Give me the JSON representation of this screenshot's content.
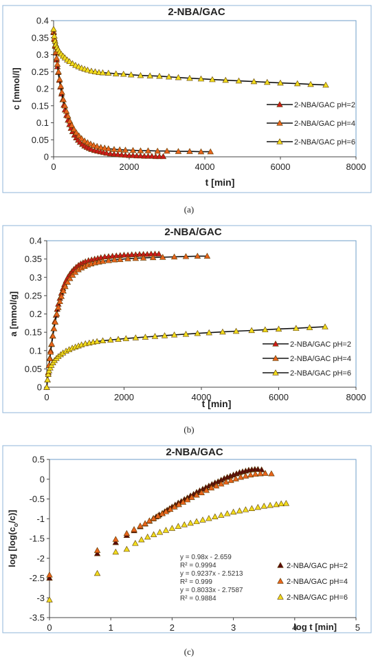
{
  "figure": {
    "captions": [
      "(a)",
      "(b)",
      "(c)"
    ]
  },
  "chart_data": [
    {
      "type": "scatter",
      "title": "2-NBA/GAC",
      "xlabel": "t [min]",
      "ylabel": "c [mmol/l]",
      "xlim": [
        0,
        8000
      ],
      "ylim": [
        0,
        0.4
      ],
      "xticks": [
        "0",
        "2000",
        "4000",
        "6000",
        "8000"
      ],
      "yticks": [
        "0",
        "0.05",
        "0.1",
        "0.15",
        "0.2",
        "0.25",
        "0.3",
        "0.35",
        "0.4"
      ],
      "grid": false,
      "legend": "right",
      "series": [
        {
          "name": "2-NBA/GAC pH=2",
          "color": "#cc1a1a",
          "x": [
            0,
            20,
            40,
            60,
            80,
            100,
            120,
            150,
            180,
            210,
            240,
            270,
            300,
            340,
            380,
            420,
            460,
            500,
            550,
            600,
            650,
            700,
            760,
            820,
            880,
            940,
            1000,
            1080,
            1160,
            1240,
            1320,
            1400,
            1500,
            1600,
            1700,
            1800,
            1900,
            2000,
            2100,
            2200,
            2300,
            2400,
            2500,
            2600,
            2700,
            2800,
            2900
          ],
          "y": [
            0.365,
            0.345,
            0.325,
            0.305,
            0.285,
            0.265,
            0.248,
            0.225,
            0.205,
            0.185,
            0.168,
            0.152,
            0.138,
            0.122,
            0.108,
            0.095,
            0.084,
            0.074,
            0.064,
            0.056,
            0.049,
            0.043,
            0.037,
            0.032,
            0.028,
            0.025,
            0.022,
            0.019,
            0.017,
            0.015,
            0.013,
            0.011,
            0.009,
            0.008,
            0.007,
            0.006,
            0.005,
            0.004,
            0.004,
            0.003,
            0.003,
            0.002,
            0.002,
            0.002,
            0.001,
            0.001,
            0.001
          ]
        },
        {
          "name": "2-NBA/GAC pH=4",
          "color": "#e8641c",
          "x": [
            0,
            20,
            40,
            60,
            80,
            100,
            130,
            160,
            190,
            220,
            260,
            300,
            340,
            380,
            430,
            480,
            540,
            600,
            670,
            740,
            820,
            900,
            980,
            1060,
            1150,
            1250,
            1350,
            1450,
            1600,
            1750,
            1900,
            2100,
            2300,
            2500,
            2750,
            3000,
            3300,
            3600,
            3900,
            4150
          ],
          "y": [
            0.368,
            0.348,
            0.328,
            0.308,
            0.29,
            0.272,
            0.25,
            0.228,
            0.208,
            0.19,
            0.168,
            0.15,
            0.134,
            0.12,
            0.105,
            0.093,
            0.081,
            0.071,
            0.062,
            0.054,
            0.047,
            0.042,
            0.038,
            0.034,
            0.031,
            0.028,
            0.026,
            0.024,
            0.022,
            0.021,
            0.02,
            0.019,
            0.018,
            0.018,
            0.017,
            0.017,
            0.016,
            0.016,
            0.015,
            0.015
          ]
        },
        {
          "name": "2-NBA/GAC pH=6",
          "color": "#f2dc1e",
          "x": [
            0,
            20,
            40,
            60,
            90,
            120,
            160,
            200,
            250,
            300,
            360,
            420,
            500,
            580,
            660,
            740,
            820,
            900,
            1000,
            1100,
            1200,
            1300,
            1450,
            1650,
            1850,
            2050,
            2300,
            2550,
            2800,
            3050,
            3300,
            3600,
            3900,
            4200,
            4550,
            4900,
            5300,
            5650,
            6000,
            6450,
            6800,
            7200
          ],
          "y": [
            0.375,
            0.355,
            0.34,
            0.33,
            0.322,
            0.315,
            0.308,
            0.302,
            0.296,
            0.291,
            0.285,
            0.28,
            0.274,
            0.269,
            0.265,
            0.261,
            0.258,
            0.255,
            0.252,
            0.25,
            0.248,
            0.247,
            0.246,
            0.244,
            0.243,
            0.241,
            0.239,
            0.238,
            0.237,
            0.235,
            0.233,
            0.231,
            0.229,
            0.227,
            0.225,
            0.223,
            0.221,
            0.219,
            0.217,
            0.215,
            0.213,
            0.211
          ]
        }
      ]
    },
    {
      "type": "scatter",
      "title": "2-NBA/GAC",
      "xlabel": "t [min]",
      "ylabel": "a [mmol/g]",
      "xlim": [
        0,
        8000
      ],
      "ylim": [
        0,
        0.4
      ],
      "xticks": [
        "0",
        "2000",
        "4000",
        "6000",
        "8000"
      ],
      "yticks": [
        "0",
        "0.05",
        "0.1",
        "0.15",
        "0.2",
        "0.25",
        "0.3",
        "0.35",
        "0.4"
      ],
      "grid": false,
      "legend": "right",
      "series": [
        {
          "name": "2-NBA/GAC pH=2",
          "color": "#cc1a1a",
          "x": [
            0,
            20,
            40,
            60,
            80,
            100,
            120,
            150,
            180,
            210,
            240,
            270,
            300,
            340,
            380,
            420,
            460,
            500,
            550,
            600,
            650,
            700,
            760,
            820,
            880,
            940,
            1000,
            1080,
            1160,
            1240,
            1320,
            1400,
            1500,
            1600,
            1700,
            1800,
            1900,
            2000,
            2100,
            2200,
            2300,
            2400,
            2500,
            2600,
            2700,
            2800,
            2900
          ],
          "y": [
            0.0,
            0.02,
            0.04,
            0.06,
            0.08,
            0.1,
            0.117,
            0.14,
            0.16,
            0.18,
            0.197,
            0.213,
            0.227,
            0.243,
            0.257,
            0.27,
            0.281,
            0.291,
            0.301,
            0.309,
            0.316,
            0.322,
            0.328,
            0.333,
            0.337,
            0.34,
            0.343,
            0.346,
            0.348,
            0.35,
            0.352,
            0.354,
            0.356,
            0.357,
            0.358,
            0.359,
            0.36,
            0.361,
            0.361,
            0.362,
            0.362,
            0.363,
            0.363,
            0.363,
            0.364,
            0.364,
            0.364
          ]
        },
        {
          "name": "2-NBA/GAC pH=4",
          "color": "#e8641c",
          "x": [
            0,
            20,
            40,
            60,
            80,
            100,
            130,
            160,
            190,
            220,
            260,
            300,
            340,
            380,
            430,
            480,
            540,
            600,
            670,
            740,
            820,
            900,
            980,
            1060,
            1150,
            1250,
            1350,
            1450,
            1600,
            1750,
            1900,
            2100,
            2300,
            2500,
            2750,
            3000,
            3300,
            3600,
            3900,
            4150
          ],
          "y": [
            0.0,
            0.02,
            0.04,
            0.06,
            0.078,
            0.096,
            0.118,
            0.14,
            0.16,
            0.178,
            0.2,
            0.218,
            0.234,
            0.248,
            0.263,
            0.275,
            0.287,
            0.297,
            0.306,
            0.314,
            0.321,
            0.326,
            0.33,
            0.334,
            0.337,
            0.34,
            0.342,
            0.344,
            0.346,
            0.348,
            0.349,
            0.351,
            0.352,
            0.353,
            0.354,
            0.355,
            0.356,
            0.357,
            0.358,
            0.358
          ]
        },
        {
          "name": "2-NBA/GAC pH=6",
          "color": "#f2dc1e",
          "x": [
            0,
            20,
            40,
            60,
            90,
            120,
            160,
            200,
            250,
            300,
            360,
            420,
            500,
            580,
            660,
            740,
            820,
            900,
            1000,
            1100,
            1200,
            1300,
            1450,
            1650,
            1850,
            2050,
            2300,
            2550,
            2800,
            3050,
            3300,
            3600,
            3900,
            4200,
            4550,
            4900,
            5300,
            5650,
            6000,
            6450,
            6800,
            7200
          ],
          "y": [
            0.0,
            0.02,
            0.035,
            0.045,
            0.053,
            0.06,
            0.067,
            0.073,
            0.079,
            0.084,
            0.089,
            0.094,
            0.099,
            0.103,
            0.107,
            0.11,
            0.113,
            0.116,
            0.119,
            0.121,
            0.123,
            0.125,
            0.127,
            0.129,
            0.131,
            0.133,
            0.135,
            0.137,
            0.139,
            0.141,
            0.143,
            0.145,
            0.147,
            0.149,
            0.151,
            0.153,
            0.155,
            0.157,
            0.159,
            0.161,
            0.163,
            0.165
          ]
        }
      ]
    },
    {
      "type": "scatter",
      "title": "2-NBA/GAC",
      "xlabel": "log t [min]",
      "ylabel": "log [log(c",
      "ylabel_sub": "o",
      "ylabel_mid": "/c)]",
      "xlim": [
        0,
        5
      ],
      "ylim": [
        -3.5,
        0.5
      ],
      "xticks": [
        "0",
        "1",
        "2",
        "3",
        "4",
        "5"
      ],
      "yticks": [
        "-3.5",
        "-3",
        "-2.5",
        "-2",
        "-1.5",
        "-1",
        "-0.5",
        "0",
        "0.5"
      ],
      "grid": false,
      "legend": "right",
      "annotations": [
        "y = 0.98x - 2.659",
        "R² = 0.9994",
        "y = 0.9237x - 2.5213",
        "R² = 0.999",
        "y = 0.8033x - 2.7587",
        "R² = 0.9884"
      ],
      "series": [
        {
          "name": "2-NBA/GAC pH=2",
          "color": "#5a0a0a",
          "x": [
            0,
            0.78,
            1.08,
            1.26,
            1.38,
            1.48,
            1.56,
            1.63,
            1.69,
            1.74,
            1.79,
            1.84,
            1.88,
            1.92,
            1.96,
            2.0,
            2.05,
            2.1,
            2.15,
            2.2,
            2.25,
            2.3,
            2.35,
            2.4,
            2.45,
            2.5,
            2.55,
            2.6,
            2.65,
            2.7,
            2.75,
            2.8,
            2.85,
            2.9,
            2.95,
            3.0,
            3.05,
            3.1,
            3.15,
            3.2,
            3.25,
            3.3,
            3.35,
            3.4,
            3.46
          ],
          "y": [
            -2.5,
            -1.88,
            -1.6,
            -1.42,
            -1.3,
            -1.2,
            -1.13,
            -1.06,
            -1.0,
            -0.95,
            -0.9,
            -0.86,
            -0.82,
            -0.78,
            -0.74,
            -0.7,
            -0.65,
            -0.6,
            -0.56,
            -0.51,
            -0.47,
            -0.42,
            -0.38,
            -0.33,
            -0.29,
            -0.25,
            -0.21,
            -0.17,
            -0.13,
            -0.09,
            -0.06,
            -0.02,
            0.02,
            0.05,
            0.08,
            0.11,
            0.14,
            0.17,
            0.19,
            0.21,
            0.23,
            0.24,
            0.25,
            0.25,
            0.24
          ]
        },
        {
          "name": "2-NBA/GAC pH=4",
          "color": "#e8641c",
          "x": [
            0,
            0.78,
            1.08,
            1.26,
            1.38,
            1.48,
            1.56,
            1.63,
            1.7,
            1.77,
            1.84,
            1.9,
            1.97,
            2.04,
            2.11,
            2.18,
            2.25,
            2.32,
            2.4,
            2.48,
            2.56,
            2.64,
            2.72,
            2.8,
            2.88,
            2.96,
            3.04,
            3.12,
            3.2,
            3.28,
            3.36,
            3.44,
            3.52,
            3.62
          ],
          "y": [
            -2.42,
            -1.8,
            -1.52,
            -1.37,
            -1.27,
            -1.18,
            -1.12,
            -1.05,
            -0.99,
            -0.93,
            -0.87,
            -0.82,
            -0.76,
            -0.7,
            -0.64,
            -0.58,
            -0.52,
            -0.46,
            -0.4,
            -0.34,
            -0.28,
            -0.22,
            -0.17,
            -0.12,
            -0.07,
            -0.03,
            0.01,
            0.05,
            0.08,
            0.11,
            0.13,
            0.14,
            0.15,
            0.14
          ]
        },
        {
          "name": "2-NBA/GAC pH=6",
          "color": "#f2dc1e",
          "x": [
            0,
            0.78,
            1.08,
            1.26,
            1.4,
            1.5,
            1.6,
            1.7,
            1.8,
            1.9,
            2.0,
            2.1,
            2.2,
            2.3,
            2.4,
            2.5,
            2.6,
            2.7,
            2.8,
            2.9,
            3.0,
            3.1,
            3.2,
            3.3,
            3.4,
            3.5,
            3.6,
            3.7,
            3.78,
            3.86
          ],
          "y": [
            -3.05,
            -2.38,
            -1.84,
            -1.77,
            -1.62,
            -1.53,
            -1.46,
            -1.4,
            -1.34,
            -1.29,
            -1.24,
            -1.19,
            -1.15,
            -1.11,
            -1.07,
            -1.03,
            -0.99,
            -0.95,
            -0.91,
            -0.87,
            -0.83,
            -0.8,
            -0.77,
            -0.74,
            -0.71,
            -0.68,
            -0.66,
            -0.64,
            -0.62,
            -0.61
          ]
        }
      ]
    }
  ]
}
